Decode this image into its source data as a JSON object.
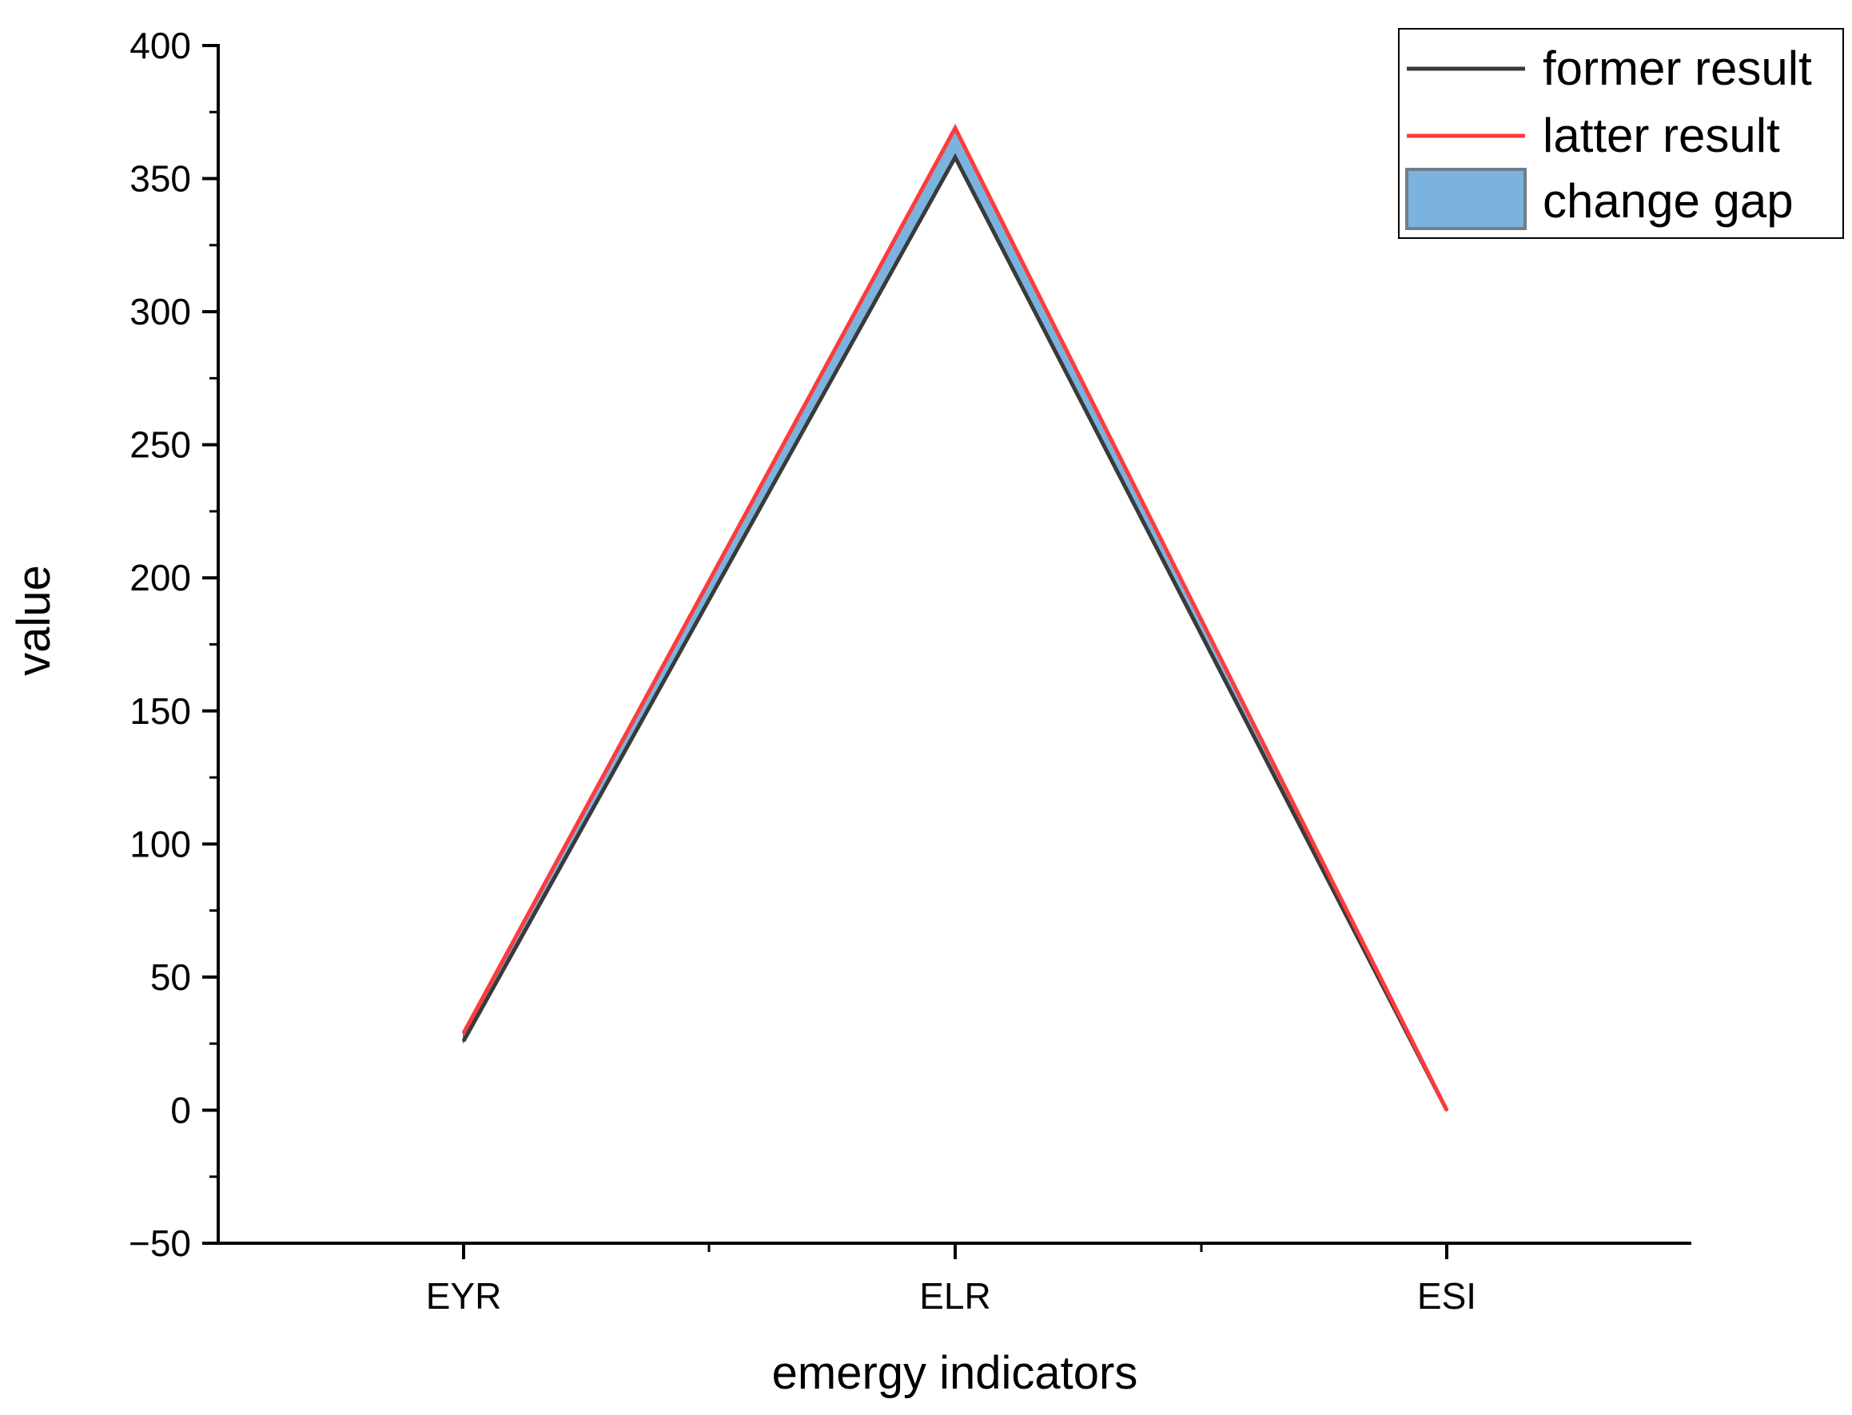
{
  "chart_data": {
    "type": "line",
    "categories": [
      "EYR",
      "ELR",
      "ESI"
    ],
    "series": [
      {
        "name": "former result",
        "values": [
          26,
          358,
          0
        ],
        "color": "#3a3a3a"
      },
      {
        "name": "latter result",
        "values": [
          29,
          369,
          0
        ],
        "color": "#ff3b3b"
      }
    ],
    "band": {
      "name": "change gap",
      "lower_series": 0,
      "upper_series": 1,
      "color": "#7bb3de",
      "edge_color": "#6f7f8c"
    },
    "xlabel": "emergy indicators",
    "ylabel": "value",
    "ylim": [
      -50,
      400
    ],
    "yticks": [
      -50,
      0,
      50,
      100,
      150,
      200,
      250,
      300,
      350,
      400
    ],
    "ytick_labels": [
      "−50",
      "0",
      "50",
      "100",
      "150",
      "200",
      "250",
      "300",
      "350",
      "400"
    ],
    "grid": false,
    "legend_position": "top-right"
  }
}
